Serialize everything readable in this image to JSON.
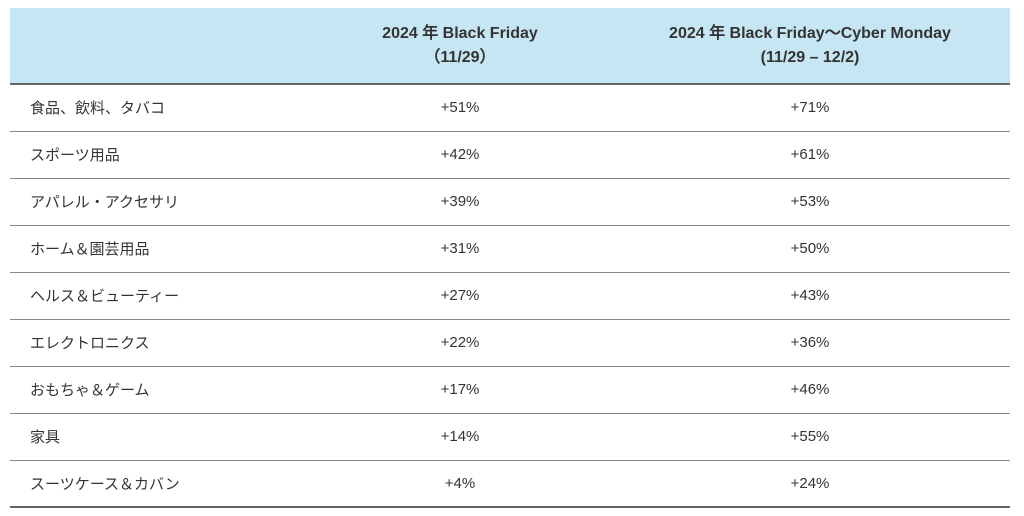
{
  "table": {
    "header_bg": "#c5e6f2",
    "columns": [
      {
        "line1": "",
        "line2": ""
      },
      {
        "line1": "2024 年  Black Friday",
        "line2": "（11/29）"
      },
      {
        "line1": "2024 年 Black Friday～Cyber Monday",
        "line2": "(11/29 – 12/2)"
      }
    ],
    "rows": [
      {
        "category": "食品、飲料、タバコ",
        "col1": "+51%",
        "col2": "+71%"
      },
      {
        "category": "スポーツ用品",
        "col1": "+42%",
        "col2": "+61%"
      },
      {
        "category": "アパレル・アクセサリ",
        "col1": "+39%",
        "col2": "+53%"
      },
      {
        "category": "ホーム＆園芸用品",
        "col1": "+31%",
        "col2": "+50%"
      },
      {
        "category": "ヘルス＆ビューティー",
        "col1": "+27%",
        "col2": "+43%"
      },
      {
        "category": "エレクトロニクス",
        "col1": "+22%",
        "col2": "+36%"
      },
      {
        "category": "おもちゃ＆ゲーム",
        "col1": "+17%",
        "col2": "+46%"
      },
      {
        "category": "家具",
        "col1": "+14%",
        "col2": "+55%"
      },
      {
        "category": "スーツケース＆カバン",
        "col1": "+4%",
        "col2": "+24%"
      }
    ]
  }
}
